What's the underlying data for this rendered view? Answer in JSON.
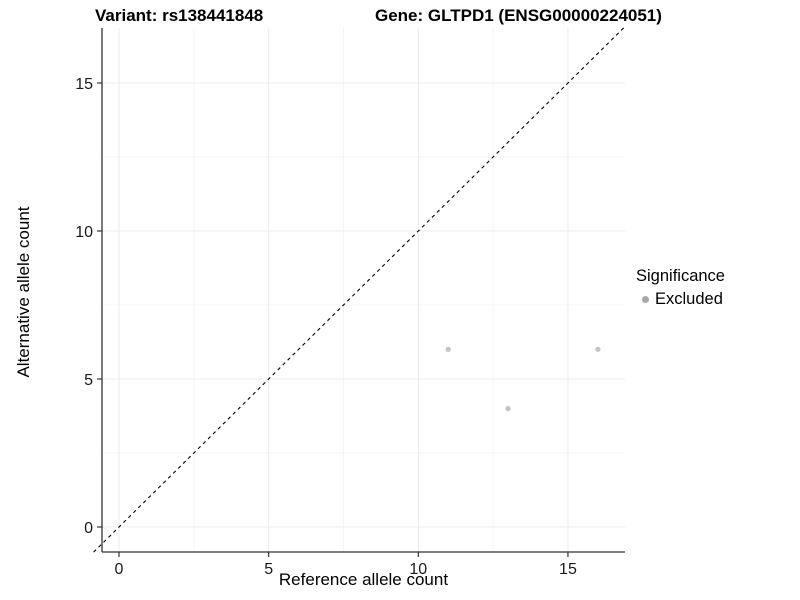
{
  "titles": {
    "variant": "Variant: rs138441848",
    "gene": "Gene: GLTPD1 (ENSG00000224051)"
  },
  "axes": {
    "x_label": "Reference allele count",
    "y_label": "Alternative allele count"
  },
  "legend": {
    "title": "Significance",
    "items": [
      {
        "label": "Excluded",
        "color": "#a8a8a8"
      }
    ]
  },
  "colors": {
    "background": "#ffffff",
    "grid_major": "#ebebeb",
    "grid_minor": "#f4f4f4",
    "axis_line": "#333333",
    "tick_text": "#1a1a1a",
    "point": "#c3c3c3",
    "reference_line": "#000000"
  },
  "chart_data": {
    "type": "scatter",
    "title_left": "Variant: rs138441848",
    "title_right": "Gene: GLTPD1 (ENSG00000224051)",
    "xlabel": "Reference allele count",
    "ylabel": "Alternative allele count",
    "xlim": [
      -0.85,
      16.9
    ],
    "ylim": [
      -0.85,
      16.9
    ],
    "x_major_ticks": [
      0,
      5,
      10,
      15
    ],
    "y_major_ticks": [
      0,
      5,
      10,
      15
    ],
    "x_minor_ticks": [
      2.5,
      7.5,
      12.5
    ],
    "y_minor_ticks": [
      2.5,
      7.5,
      12.5
    ],
    "grid": true,
    "legend_position": "right",
    "reference_line": {
      "type": "identity",
      "style": "dashed"
    },
    "series": [
      {
        "name": "Excluded",
        "color": "#c3c3c3",
        "points": [
          [
            11,
            6
          ],
          [
            13,
            4
          ],
          [
            16,
            6
          ]
        ]
      }
    ]
  }
}
